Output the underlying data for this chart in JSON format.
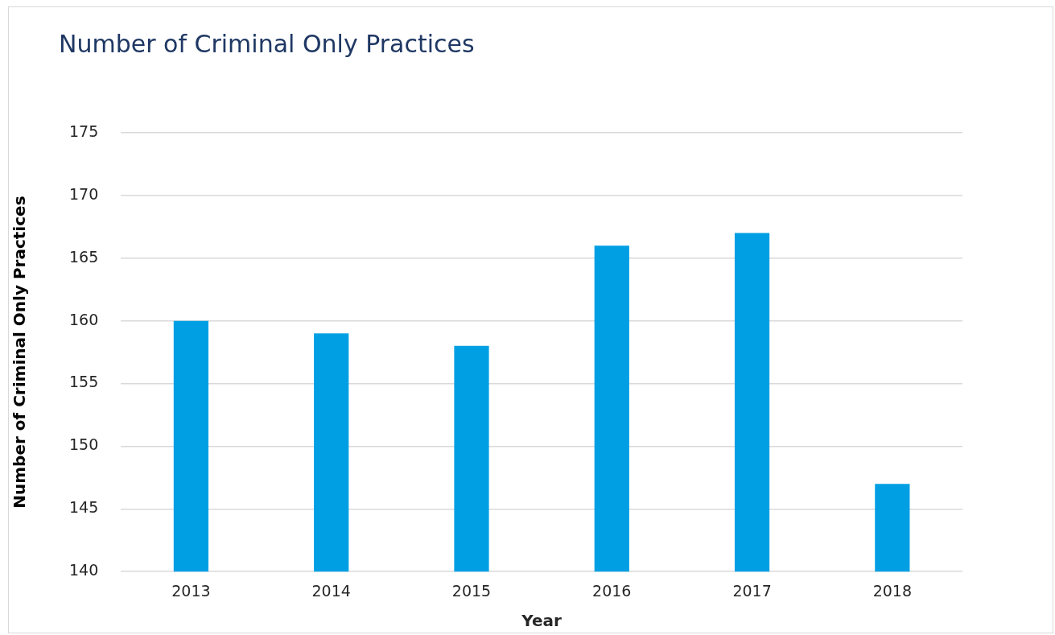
{
  "chart_data": {
    "type": "bar",
    "title": "Number of Criminal Only Practices",
    "xlabel": "Year",
    "ylabel": "Number of Criminal Only Practices",
    "categories": [
      "2013",
      "2014",
      "2015",
      "2016",
      "2017",
      "2018"
    ],
    "values": [
      160,
      159,
      158,
      166,
      167,
      147
    ],
    "color": "#009fe3",
    "ylim": [
      140,
      175
    ],
    "yticks": [
      140,
      145,
      150,
      155,
      160,
      165,
      170,
      175
    ],
    "grid": "y",
    "legend": false
  }
}
